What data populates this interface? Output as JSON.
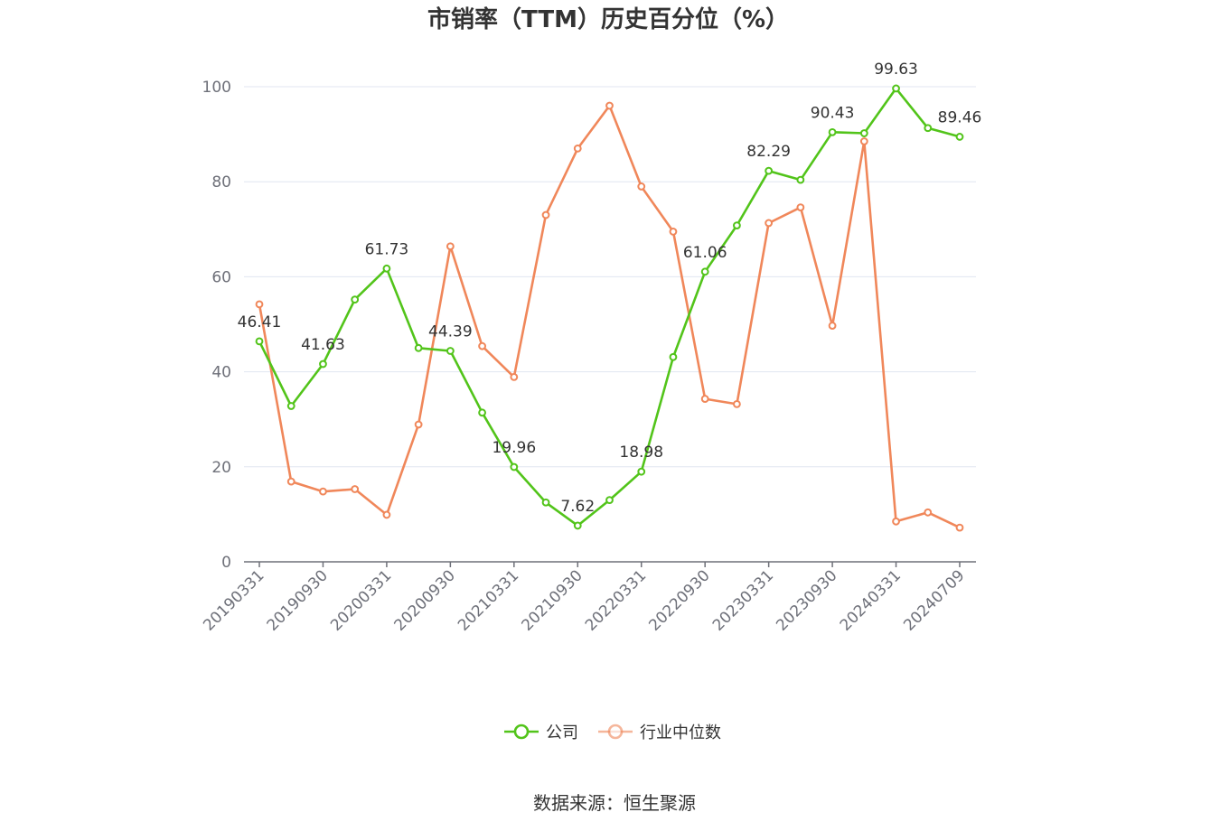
{
  "chart_data": {
    "type": "line",
    "title": "市销率（TTM）历史百分位（%）",
    "source": "数据来源：恒生聚源",
    "ylim": [
      0,
      100
    ],
    "yticks": [
      0,
      20,
      40,
      60,
      80,
      100
    ],
    "grid": true,
    "legend_position": "bottom-center",
    "x": [
      "20190331",
      "20190630",
      "20190930",
      "20191231",
      "20200331",
      "20200630",
      "20200930",
      "20201231",
      "20210331",
      "20210630",
      "20210930",
      "20211231",
      "20220331",
      "20220630",
      "20220930",
      "20221231",
      "20230331",
      "20230630",
      "20230930",
      "20231231",
      "20240331",
      "20240630",
      "20240709"
    ],
    "x_tick_labels": [
      "20190331",
      "20190930",
      "20200331",
      "20200930",
      "20210331",
      "20210930",
      "20220331",
      "20220930",
      "20230331",
      "20230930",
      "20240331",
      "20240709"
    ],
    "series": [
      {
        "name": "公司",
        "color": "#52c41a",
        "values": [
          46.41,
          32.8,
          41.63,
          55.2,
          61.73,
          45.0,
          44.39,
          31.4,
          19.96,
          12.5,
          7.62,
          13.0,
          18.98,
          43.1,
          61.06,
          70.8,
          82.29,
          80.4,
          90.43,
          90.2,
          99.63,
          91.3,
          89.46
        ],
        "labels": [
          "46.41",
          "",
          "41.63",
          "",
          "61.73",
          "",
          "44.39",
          "",
          "19.96",
          "",
          "7.62",
          "",
          "18.98",
          "",
          "61.06",
          "",
          "82.29",
          "",
          "90.43",
          "",
          "99.63",
          "",
          "89.46"
        ]
      },
      {
        "name": "行业中位数",
        "color": "#f0875a",
        "values": [
          54.2,
          16.9,
          14.8,
          15.3,
          9.9,
          28.9,
          66.4,
          45.4,
          38.9,
          73.0,
          87.0,
          96.0,
          79.0,
          69.5,
          34.3,
          33.2,
          71.3,
          74.6,
          49.7,
          88.5,
          8.5,
          10.4,
          7.2
        ]
      }
    ]
  }
}
